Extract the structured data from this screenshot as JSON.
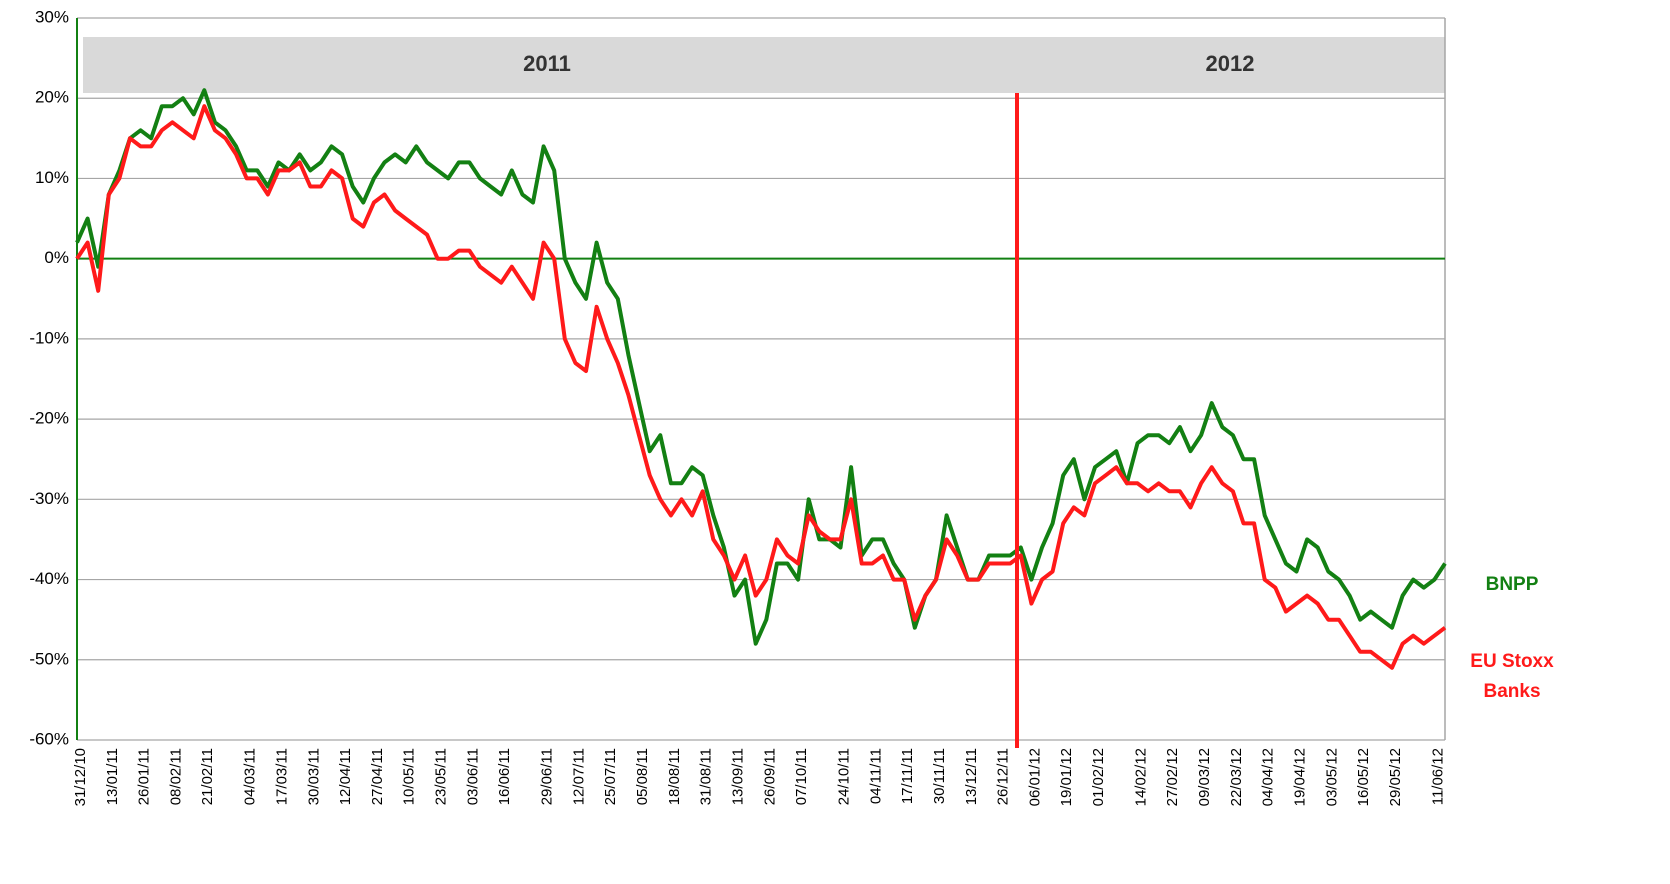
{
  "chart_data": {
    "type": "line",
    "annotations": [
      "2011",
      "2012"
    ],
    "categories": [
      "31/12/10",
      null,
      null,
      "13/01/11",
      null,
      null,
      "26/01/11",
      null,
      null,
      "08/02/11",
      null,
      null,
      "21/02/11",
      null,
      null,
      null,
      "04/03/11",
      null,
      null,
      "17/03/11",
      null,
      null,
      "30/03/11",
      null,
      null,
      "12/04/11",
      null,
      null,
      "27/04/11",
      null,
      null,
      "10/05/11",
      null,
      null,
      "23/05/11",
      null,
      null,
      "03/06/11",
      null,
      null,
      "16/06/11",
      null,
      null,
      null,
      "29/06/11",
      null,
      null,
      "12/07/11",
      null,
      null,
      "25/07/11",
      null,
      null,
      "05/08/11",
      null,
      null,
      "18/08/11",
      null,
      null,
      "31/08/11",
      null,
      null,
      "13/09/11",
      null,
      null,
      "26/09/11",
      null,
      null,
      "07/10/11",
      null,
      null,
      null,
      "24/10/11",
      null,
      null,
      "04/11/11",
      null,
      null,
      "17/11/11",
      null,
      null,
      "30/11/11",
      null,
      null,
      "13/12/11",
      null,
      null,
      "26/12/11",
      null,
      null,
      "06/01/12",
      null,
      null,
      "19/01/12",
      null,
      null,
      "01/02/12",
      null,
      null,
      null,
      "14/02/12",
      null,
      null,
      "27/02/12",
      null,
      null,
      "09/03/12",
      null,
      null,
      "22/03/12",
      null,
      null,
      "04/04/12",
      null,
      null,
      "19/04/12",
      null,
      null,
      "03/05/12",
      null,
      null,
      "16/05/12",
      null,
      null,
      "29/05/12",
      null,
      null,
      null,
      "11/06/12",
      null
    ],
    "series": [
      {
        "name": "BNPP",
        "color": "#138013",
        "values": [
          2,
          5,
          -1,
          8,
          11,
          15,
          16,
          15,
          19,
          19,
          20,
          18,
          21,
          17,
          16,
          14,
          11,
          11,
          9,
          12,
          11,
          13,
          11,
          12,
          14,
          13,
          9,
          7,
          10,
          12,
          13,
          12,
          14,
          12,
          11,
          10,
          12,
          12,
          10,
          9,
          8,
          11,
          8,
          7,
          14,
          11,
          0,
          -3,
          -5,
          2,
          -3,
          -5,
          -12,
          -18,
          -24,
          -22,
          -28,
          -28,
          -26,
          -27,
          -32,
          -36,
          -42,
          -40,
          -48,
          -45,
          -38,
          -38,
          -40,
          -30,
          -35,
          -35,
          -36,
          -26,
          -37,
          -35,
          -35,
          -38,
          -40,
          -46,
          -42,
          -40,
          -32,
          -36,
          -40,
          -40,
          -37,
          -37,
          -37,
          -36,
          -40,
          -36,
          -33,
          -27,
          -25,
          -30,
          -26,
          -25,
          -24,
          -28,
          -23,
          -22,
          -22,
          -23,
          -21,
          -24,
          -22,
          -18,
          -21,
          -22,
          -25,
          -25,
          -32,
          -35,
          -38,
          -39,
          -35,
          -36,
          -39,
          -40,
          -42,
          -45,
          -44,
          -45,
          -46,
          -42,
          -40,
          -41,
          -40,
          -38
        ]
      },
      {
        "name": "EU Stoxx Banks",
        "color": "#ff1a1a",
        "values": [
          0,
          2,
          -4,
          8,
          10,
          15,
          14,
          14,
          16,
          17,
          16,
          15,
          19,
          16,
          15,
          13,
          10,
          10,
          8,
          11,
          11,
          12,
          9,
          9,
          11,
          10,
          5,
          4,
          7,
          8,
          6,
          5,
          4,
          3,
          0,
          0,
          1,
          1,
          -1,
          -2,
          -3,
          -1,
          -3,
          -5,
          2,
          0,
          -10,
          -13,
          -14,
          -6,
          -10,
          -13,
          -17,
          -22,
          -27,
          -30,
          -32,
          -30,
          -32,
          -29,
          -35,
          -37,
          -40,
          -37,
          -42,
          -40,
          -35,
          -37,
          -38,
          -32,
          -34,
          -35,
          -35,
          -30,
          -38,
          -38,
          -37,
          -40,
          -40,
          -45,
          -42,
          -40,
          -35,
          -37,
          -40,
          -40,
          -38,
          -38,
          -38,
          -37,
          -43,
          -40,
          -39,
          -33,
          -31,
          -32,
          -28,
          -27,
          -26,
          -28,
          -28,
          -29,
          -28,
          -29,
          -29,
          -31,
          -28,
          -26,
          -28,
          -29,
          -33,
          -33,
          -40,
          -41,
          -44,
          -43,
          -42,
          -43,
          -45,
          -45,
          -47,
          -49,
          -49,
          -50,
          -51,
          -48,
          -47,
          -48,
          -47,
          -46
        ]
      }
    ],
    "ylim": [
      -60,
      30
    ],
    "yticks": [
      {
        "value": -60,
        "label": "-60%"
      },
      {
        "value": -50,
        "label": "-50%"
      },
      {
        "value": -40,
        "label": "-40%"
      },
      {
        "value": -30,
        "label": "-30%"
      },
      {
        "value": -20,
        "label": "-20%"
      },
      {
        "value": -10,
        "label": "-10%"
      },
      {
        "value": 0,
        "label": "0%"
      },
      {
        "value": 10,
        "label": "10%"
      },
      {
        "value": 20,
        "label": "20%"
      },
      {
        "value": 30,
        "label": "30%"
      }
    ],
    "grid": true
  }
}
